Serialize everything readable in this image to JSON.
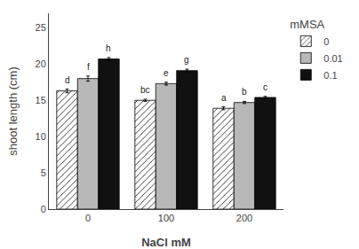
{
  "chart_data": {
    "type": "bar",
    "categories": [
      "0",
      "100",
      "200"
    ],
    "xlabel": "NaCl mM",
    "ylabel": "shoot length (cm)",
    "ylim": [
      0,
      27
    ],
    "yticks": [
      0,
      5,
      10,
      15,
      20,
      25
    ],
    "grid": false,
    "legend": "upper right",
    "legend_title": "mMSA",
    "series": [
      {
        "name": "0",
        "color": "white",
        "values": [
          16.3,
          15.0,
          13.9
        ],
        "errors": [
          0.25,
          0.15,
          0.2
        ],
        "annotations": [
          "d",
          "bc",
          "a"
        ]
      },
      {
        "name": "0.01",
        "color": "#b8b8b8",
        "values": [
          18.0,
          17.3,
          14.7
        ],
        "errors": [
          0.35,
          0.2,
          0.15
        ],
        "annotations": [
          "f",
          "e",
          "b"
        ]
      },
      {
        "name": "0.1",
        "color": "#111111",
        "values": [
          20.7,
          19.1,
          15.4
        ],
        "errors": [
          0.2,
          0.2,
          0.15
        ],
        "annotations": [
          "h",
          "g",
          "c"
        ]
      }
    ]
  }
}
